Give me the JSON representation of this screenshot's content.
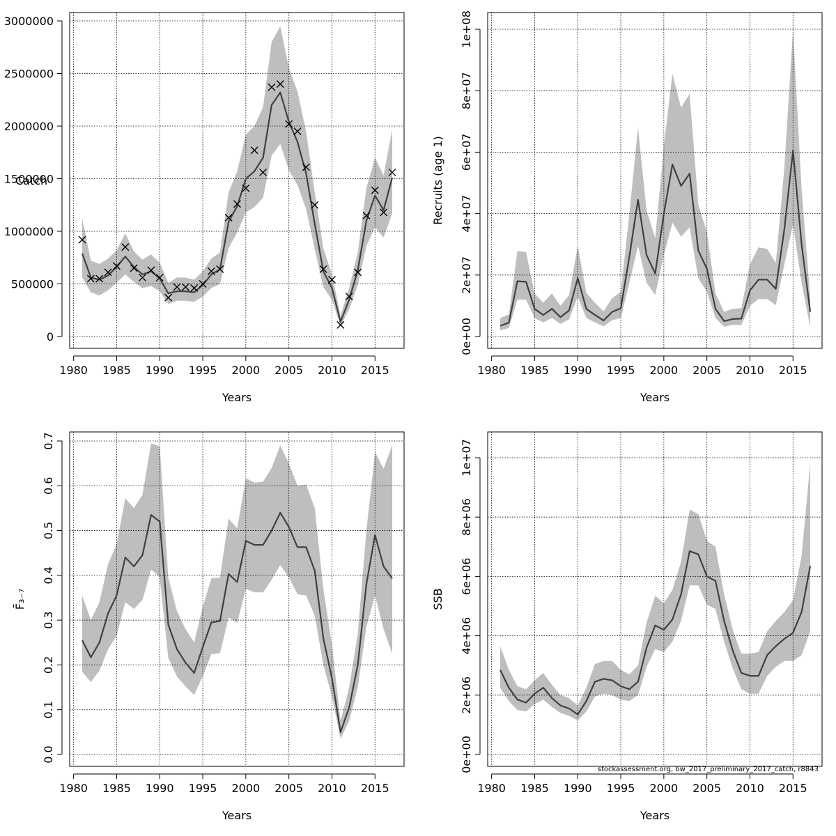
{
  "colors": {
    "band": "#bebebe",
    "line": "#404040",
    "grid": "#000000",
    "marker": "#000000"
  },
  "footer": "stockassessment.org, bw_2017_preliminary_2017_catch, r8843",
  "chart_data": [
    {
      "id": "catch",
      "type": "line",
      "xlabel": "Years",
      "ylabel": "Catch",
      "ylabel_rotated": false,
      "xlim": [
        1981,
        2017
      ],
      "ylim": [
        0,
        3000000
      ],
      "xticks": [
        1980,
        1985,
        1990,
        1995,
        2000,
        2005,
        2010,
        2015
      ],
      "yticks": [
        0,
        500000,
        1000000,
        1500000,
        2000000,
        2500000,
        3000000
      ],
      "ytick_labels": [
        "0",
        "500000",
        "1000000",
        "1500000",
        "2000000",
        "2500000",
        "3000000"
      ],
      "ytick_rotated": false,
      "grid": true,
      "x": [
        1981,
        1982,
        1983,
        1984,
        1985,
        1986,
        1987,
        1988,
        1989,
        1990,
        1991,
        1992,
        1993,
        1994,
        1995,
        1996,
        1997,
        1998,
        1999,
        2000,
        2001,
        2002,
        2003,
        2004,
        2005,
        2006,
        2007,
        2008,
        2009,
        2010,
        2011,
        2012,
        2013,
        2014,
        2015,
        2016,
        2017
      ],
      "estimate": [
        790000,
        560000,
        540000,
        580000,
        660000,
        760000,
        660000,
        590000,
        620000,
        550000,
        410000,
        430000,
        430000,
        420000,
        490000,
        590000,
        640000,
        1090000,
        1240000,
        1500000,
        1570000,
        1700000,
        2200000,
        2320000,
        2040000,
        1850000,
        1550000,
        1070000,
        620000,
        460000,
        140000,
        350000,
        630000,
        1100000,
        1340000,
        1200000,
        1510000
      ],
      "upper": [
        1120000,
        720000,
        690000,
        740000,
        820000,
        980000,
        810000,
        730000,
        780000,
        700000,
        510000,
        560000,
        560000,
        540000,
        620000,
        740000,
        800000,
        1370000,
        1570000,
        1920000,
        2000000,
        2180000,
        2800000,
        2950000,
        2550000,
        2330000,
        1950000,
        1370000,
        840000,
        590000,
        200000,
        460000,
        800000,
        1410000,
        1700000,
        1530000,
        1970000
      ],
      "lower": [
        560000,
        420000,
        390000,
        440000,
        510000,
        590000,
        520000,
        460000,
        480000,
        430000,
        310000,
        340000,
        340000,
        330000,
        380000,
        460000,
        500000,
        840000,
        990000,
        1180000,
        1230000,
        1320000,
        1720000,
        1830000,
        1580000,
        1440000,
        1210000,
        830000,
        470000,
        350000,
        100000,
        260000,
        490000,
        860000,
        1040000,
        940000,
        1170000
      ],
      "observed": [
        920000,
        550000,
        550000,
        610000,
        670000,
        850000,
        650000,
        560000,
        630000,
        560000,
        370000,
        470000,
        470000,
        460000,
        500000,
        620000,
        640000,
        1130000,
        1260000,
        1410000,
        1770000,
        1560000,
        2370000,
        2400000,
        2020000,
        1950000,
        1610000,
        1250000,
        640000,
        540000,
        110000,
        380000,
        610000,
        1150000,
        1390000,
        1180000,
        1560000
      ]
    },
    {
      "id": "recruits",
      "type": "line",
      "xlabel": "Years",
      "ylabel": "Recruits (age 1)",
      "ylabel_rotated": true,
      "xlim": [
        1981,
        2017
      ],
      "ylim": [
        0,
        100000000
      ],
      "xticks": [
        1980,
        1985,
        1990,
        1995,
        2000,
        2005,
        2010,
        2015
      ],
      "yticks": [
        0,
        20000000,
        40000000,
        60000000,
        80000000,
        100000000
      ],
      "ytick_labels": [
        "0e+00",
        "2e+07",
        "4e+07",
        "6e+07",
        "8e+07",
        "1e+08"
      ],
      "ytick_rotated": true,
      "grid": true,
      "x": [
        1981,
        1982,
        1983,
        1984,
        1985,
        1986,
        1987,
        1988,
        1989,
        1990,
        1991,
        1992,
        1993,
        1994,
        1995,
        1996,
        1997,
        1998,
        1999,
        2000,
        2001,
        2002,
        2003,
        2004,
        2005,
        2006,
        2007,
        2008,
        2009,
        2010,
        2011,
        2012,
        2013,
        2014,
        2015,
        2016,
        2017
      ],
      "estimate": [
        3500000,
        4500000,
        18000000,
        17800000,
        9000000,
        7000000,
        9000000,
        6300000,
        8500000,
        19000000,
        9000000,
        7000000,
        5200000,
        8000000,
        9200000,
        26000000,
        44500000,
        26500000,
        20500000,
        40000000,
        56000000,
        49000000,
        53000000,
        28000000,
        22000000,
        9000000,
        5000000,
        5700000,
        5800000,
        15000000,
        18500000,
        18500000,
        15500000,
        35000000,
        60500000,
        30000000,
        8000000
      ],
      "upper": [
        6000000,
        7200000,
        27800000,
        27500000,
        14000000,
        11000000,
        14000000,
        10000000,
        13500000,
        29500000,
        14200000,
        11000000,
        8200000,
        12500000,
        14500000,
        40000000,
        68000000,
        41000000,
        32000000,
        62000000,
        85500000,
        74500000,
        79000000,
        43000000,
        34000000,
        14000000,
        8000000,
        9000000,
        9200000,
        23500000,
        29000000,
        28500000,
        24000000,
        55000000,
        100000000,
        48000000,
        13000000
      ],
      "lower": [
        2000000,
        2800000,
        12000000,
        12000000,
        6000000,
        4600000,
        6000000,
        4100000,
        5600000,
        13000000,
        6000000,
        4600000,
        3300000,
        5300000,
        6000000,
        17500000,
        29500000,
        17500000,
        13500000,
        26500000,
        37000000,
        32500000,
        35500000,
        19000000,
        14500000,
        6000000,
        3200000,
        3800000,
        3700000,
        10000000,
        12200000,
        12200000,
        10200000,
        23500000,
        36500000,
        17500000,
        3000000
      ]
    },
    {
      "id": "fbar",
      "type": "line",
      "xlabel": "Years",
      "ylabel": "F̄₃₋₇",
      "ylabel_rotated": true,
      "xlim": [
        1981,
        2017
      ],
      "ylim": [
        0,
        0.7
      ],
      "xticks": [
        1980,
        1985,
        1990,
        1995,
        2000,
        2005,
        2010,
        2015
      ],
      "yticks": [
        0,
        0.1,
        0.2,
        0.3,
        0.4,
        0.5,
        0.6,
        0.7
      ],
      "ytick_labels": [
        "0.0",
        "0.1",
        "0.2",
        "0.3",
        "0.4",
        "0.5",
        "0.6",
        "0.7"
      ],
      "ytick_rotated": true,
      "grid": true,
      "x": [
        1981,
        1982,
        1983,
        1984,
        1985,
        1986,
        1987,
        1988,
        1989,
        1990,
        1991,
        1992,
        1993,
        1994,
        1995,
        1996,
        1997,
        1998,
        1999,
        2000,
        2001,
        2002,
        2003,
        2004,
        2005,
        2006,
        2007,
        2008,
        2009,
        2010,
        2011,
        2012,
        2013,
        2014,
        2015,
        2016,
        2017
      ],
      "estimate": [
        0.255,
        0.217,
        0.25,
        0.315,
        0.355,
        0.44,
        0.42,
        0.445,
        0.535,
        0.52,
        0.29,
        0.235,
        0.205,
        0.182,
        0.24,
        0.295,
        0.298,
        0.403,
        0.385,
        0.477,
        0.468,
        0.468,
        0.5,
        0.54,
        0.508,
        0.463,
        0.463,
        0.41,
        0.26,
        0.17,
        0.05,
        0.105,
        0.2,
        0.38,
        0.49,
        0.42,
        0.393
      ],
      "upper": [
        0.355,
        0.3,
        0.34,
        0.425,
        0.47,
        0.572,
        0.55,
        0.58,
        0.695,
        0.688,
        0.395,
        0.32,
        0.28,
        0.25,
        0.33,
        0.393,
        0.395,
        0.527,
        0.505,
        0.617,
        0.607,
        0.609,
        0.64,
        0.69,
        0.65,
        0.6,
        0.603,
        0.55,
        0.37,
        0.245,
        0.075,
        0.15,
        0.27,
        0.5,
        0.675,
        0.638,
        0.69
      ],
      "lower": [
        0.185,
        0.162,
        0.187,
        0.235,
        0.265,
        0.34,
        0.325,
        0.345,
        0.413,
        0.396,
        0.215,
        0.174,
        0.152,
        0.133,
        0.175,
        0.224,
        0.226,
        0.306,
        0.294,
        0.37,
        0.362,
        0.362,
        0.39,
        0.423,
        0.395,
        0.358,
        0.355,
        0.31,
        0.2,
        0.13,
        0.035,
        0.075,
        0.15,
        0.285,
        0.355,
        0.28,
        0.225
      ]
    },
    {
      "id": "ssb",
      "type": "line",
      "xlabel": "Years",
      "ylabel": "SSB",
      "ylabel_rotated": true,
      "xlim": [
        1981,
        2017
      ],
      "ylim": [
        0,
        10000000
      ],
      "xticks": [
        1980,
        1985,
        1990,
        1995,
        2000,
        2005,
        2010,
        2015
      ],
      "yticks": [
        0,
        2000000,
        4000000,
        6000000,
        8000000,
        10000000
      ],
      "ytick_labels": [
        "0e+00",
        "2e+06",
        "4e+06",
        "6e+06",
        "8e+06",
        "1e+07"
      ],
      "ytick_rotated": true,
      "grid": true,
      "x": [
        1981,
        1982,
        1983,
        1984,
        1985,
        1986,
        1987,
        1988,
        1989,
        1990,
        1991,
        1992,
        1993,
        1994,
        1995,
        1996,
        1997,
        1998,
        1999,
        2000,
        2001,
        2002,
        2003,
        2004,
        2005,
        2006,
        2007,
        2008,
        2009,
        2010,
        2011,
        2012,
        2013,
        2014,
        2015,
        2016,
        2017
      ],
      "estimate": [
        2850000,
        2250000,
        1850000,
        1750000,
        2050000,
        2250000,
        1900000,
        1650000,
        1550000,
        1350000,
        1800000,
        2450000,
        2550000,
        2500000,
        2300000,
        2200000,
        2450000,
        3600000,
        4350000,
        4200000,
        4550000,
        5400000,
        6850000,
        6750000,
        6000000,
        5850000,
        4500000,
        3500000,
        2750000,
        2650000,
        2650000,
        3350000,
        3650000,
        3900000,
        4100000,
        4800000,
        6350000
      ],
      "upper": [
        3650000,
        2850000,
        2300000,
        2200000,
        2500000,
        2750000,
        2350000,
        2000000,
        1900000,
        1650000,
        2250000,
        3050000,
        3150000,
        3150000,
        2850000,
        2700000,
        3000000,
        4450000,
        5350000,
        5100000,
        5550000,
        6500000,
        8250000,
        8100000,
        7200000,
        7000000,
        5400000,
        4200000,
        3400000,
        3400000,
        3450000,
        4150000,
        4500000,
        4800000,
        5200000,
        6700000,
        9800000
      ],
      "lower": [
        2250000,
        1800000,
        1500000,
        1450000,
        1700000,
        1850000,
        1600000,
        1400000,
        1300000,
        1150000,
        1450000,
        1950000,
        2050000,
        2000000,
        1850000,
        1800000,
        2000000,
        2950000,
        3550000,
        3450000,
        3800000,
        4500000,
        5700000,
        5700000,
        5050000,
        4900000,
        3800000,
        2900000,
        2200000,
        2050000,
        2050000,
        2650000,
        2950000,
        3150000,
        3150000,
        3350000,
        4150000
      ]
    }
  ]
}
